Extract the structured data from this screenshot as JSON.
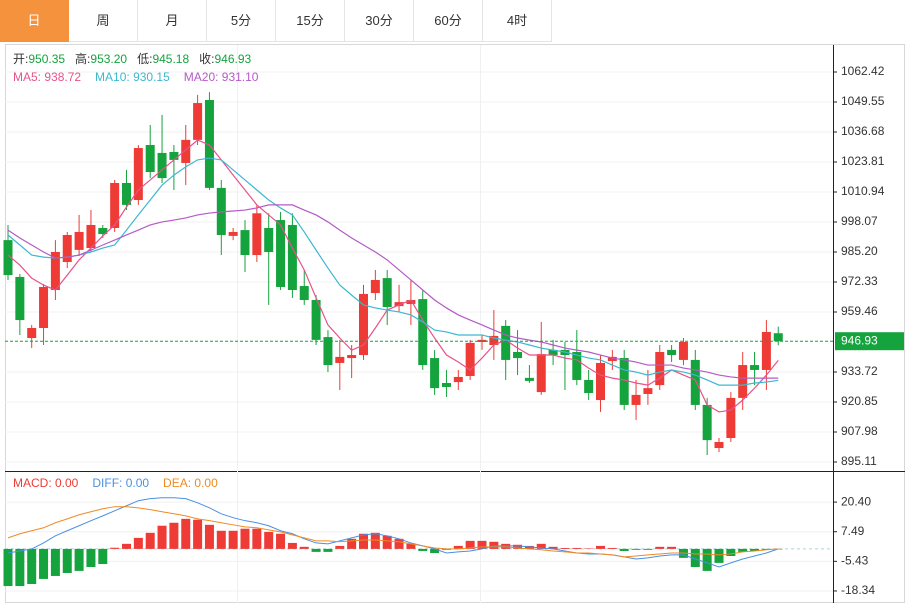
{
  "tabs": [
    "日",
    "周",
    "月",
    "5分",
    "15分",
    "30分",
    "60分",
    "4时"
  ],
  "active_tab": 0,
  "chart_data": [
    {
      "type": "candlestick",
      "info": [
        {
          "label": "开:",
          "value": "950.35"
        },
        {
          "label": "高:",
          "value": "953.20"
        },
        {
          "label": "低:",
          "value": "945.18"
        },
        {
          "label": "收:",
          "value": "946.93"
        }
      ],
      "info_value_color": "#14a33d",
      "up_color": "#ee3b36",
      "down_color": "#14a33d",
      "ylim": [
        891.68,
        1074.0
      ],
      "yticks": [
        1062.42,
        1049.55,
        1036.68,
        1023.81,
        1010.94,
        998.07,
        {
          "value": 985.2,
          "label": "985.20"
        },
        972.33,
        959.46,
        933.72,
        920.85,
        907.98,
        895.11
      ],
      "last_price": 946.93,
      "grid": true,
      "ohlc": [
        [
          990.3,
          996.8,
          973.2,
          975.3
        ],
        [
          974.5,
          975.8,
          949.6,
          956.0
        ],
        [
          948.3,
          953.9,
          944.0,
          952.6
        ],
        [
          952.6,
          971.5,
          945.3,
          970.2
        ],
        [
          968.9,
          990.3,
          964.6,
          985.2
        ],
        [
          980.9,
          993.8,
          978.3,
          992.5
        ],
        [
          986.1,
          1001.1,
          983.5,
          993.8
        ],
        [
          986.9,
          1003.2,
          985.2,
          996.8
        ],
        [
          995.5,
          996.8,
          991.2,
          992.9
        ],
        [
          995.5,
          1016.1,
          993.8,
          1014.8
        ],
        [
          1014.8,
          1020.4,
          1003.2,
          1005.4
        ],
        [
          1007.5,
          1031.1,
          1005.4,
          1029.8
        ],
        [
          1031.1,
          1039.7,
          1016.9,
          1019.5
        ],
        [
          1027.7,
          1044.0,
          1014.8,
          1016.9
        ],
        [
          1028.1,
          1031.1,
          1011.8,
          1024.7
        ],
        [
          1023.4,
          1039.7,
          1013.9,
          1033.3
        ],
        [
          1033.3,
          1052.6,
          1031.1,
          1049.1
        ],
        [
          1050.4,
          1053.8,
          1011.8,
          1012.7
        ],
        [
          1012.7,
          1016.1,
          983.9,
          992.5
        ],
        [
          992.1,
          995.5,
          990.3,
          993.8
        ],
        [
          994.6,
          998.9,
          976.6,
          983.9
        ],
        [
          983.9,
          1005.4,
          980.9,
          1001.8
        ],
        [
          995.5,
          1001.8,
          962.5,
          985.2
        ],
        [
          998.9,
          1002.4,
          968.9,
          970.2
        ],
        [
          996.8,
          1001.8,
          965.5,
          968.9
        ],
        [
          970.6,
          977.5,
          962.5,
          964.6
        ],
        [
          964.6,
          966.7,
          945.3,
          947.5
        ],
        [
          948.7,
          951.7,
          933.7,
          936.7
        ],
        [
          937.6,
          947.5,
          926.0,
          940.2
        ],
        [
          939.7,
          945.3,
          931.1,
          941.0
        ],
        [
          941.0,
          971.1,
          938.9,
          967.2
        ],
        [
          967.6,
          977.5,
          964.6,
          973.2
        ],
        [
          974.0,
          977.5,
          953.9,
          961.6
        ],
        [
          962.0,
          971.1,
          959.5,
          963.7
        ],
        [
          962.9,
          973.2,
          953.9,
          964.6
        ],
        [
          965.0,
          968.9,
          934.6,
          936.7
        ],
        [
          939.7,
          943.1,
          923.9,
          926.8
        ],
        [
          929.0,
          934.6,
          923.0,
          927.3
        ],
        [
          929.4,
          934.6,
          926.0,
          931.6
        ],
        [
          932.0,
          947.5,
          930.3,
          946.2
        ],
        [
          946.6,
          949.6,
          943.2,
          947.5
        ],
        [
          945.3,
          960.3,
          938.9,
          949.2
        ],
        [
          953.5,
          956.0,
          930.3,
          938.9
        ],
        [
          942.3,
          951.7,
          932.4,
          939.7
        ],
        [
          931.2,
          936.7,
          929.0,
          929.9
        ],
        [
          925.1,
          955.2,
          923.9,
          941.4
        ],
        [
          943.2,
          947.5,
          936.7,
          941.0
        ],
        [
          943.2,
          946.6,
          926.0,
          941.0
        ],
        [
          942.3,
          951.7,
          928.1,
          930.3
        ],
        [
          930.3,
          934.6,
          921.7,
          924.7
        ],
        [
          921.7,
          941.0,
          916.6,
          937.6
        ],
        [
          938.4,
          943.2,
          934.6,
          940.2
        ],
        [
          939.7,
          943.2,
          917.4,
          919.6
        ],
        [
          919.6,
          930.3,
          913.1,
          923.9
        ],
        [
          924.3,
          934.6,
          919.6,
          926.8
        ],
        [
          928.1,
          945.3,
          926.0,
          942.3
        ],
        [
          943.2,
          945.3,
          938.0,
          941.0
        ],
        [
          938.9,
          948.3,
          936.7,
          946.6
        ],
        [
          938.9,
          943.2,
          917.4,
          919.6
        ],
        [
          919.6,
          922.6,
          898.1,
          904.5
        ],
        [
          901.1,
          905.4,
          899.4,
          903.7
        ],
        [
          905.4,
          925.1,
          903.7,
          922.6
        ],
        [
          922.6,
          942.3,
          917.4,
          936.7
        ],
        [
          936.7,
          942.3,
          928.1,
          934.6
        ],
        [
          934.6,
          956.0,
          926.0,
          950.9
        ],
        [
          950.35,
          953.2,
          945.18,
          946.93
        ]
      ],
      "series": [
        {
          "name": "MA5: 938.72",
          "color": "#e8528a",
          "values": [
            983.9,
            979.6,
            974.0,
            971.0,
            968.9,
            975.3,
            981.8,
            986.9,
            992.1,
            996.8,
            1004.5,
            1011.8,
            1016.1,
            1020.4,
            1024.7,
            1029.0,
            1033.2,
            1031.1,
            1024.7,
            1018.2,
            1011.8,
            1005.4,
            1001.1,
            996.8,
            986.9,
            977.5,
            965.5,
            953.9,
            948.3,
            943.1,
            945.3,
            952.6,
            960.3,
            962.5,
            964.6,
            956.0,
            948.3,
            941.0,
            938.0,
            934.6,
            939.7,
            945.3,
            947.4,
            944.0,
            941.0,
            941.0,
            941.0,
            939.7,
            938.9,
            935.4,
            932.4,
            931.1,
            930.3,
            929.0,
            928.1,
            931.1,
            934.6,
            932.4,
            930.3,
            919.6,
            916.6,
            917.4,
            921.7,
            926.8,
            932.4,
            938.72
          ]
        },
        {
          "name": "MA10: 930.15",
          "color": "#3cb8d0",
          "values": [
            992.5,
            988.2,
            983.9,
            983.0,
            982.6,
            983.0,
            983.9,
            985.2,
            986.9,
            988.2,
            994.6,
            1001.1,
            1007.5,
            1013.9,
            1018.2,
            1021.7,
            1024.7,
            1025.5,
            1024.7,
            1020.4,
            1016.1,
            1011.8,
            1007.5,
            1004.1,
            1001.1,
            993.8,
            986.0,
            978.3,
            971.0,
            966.7,
            962.5,
            961.2,
            960.3,
            959.5,
            958.2,
            955.2,
            951.7,
            950.9,
            949.6,
            949.6,
            949.6,
            948.3,
            947.4,
            946.6,
            945.3,
            944.0,
            943.1,
            942.3,
            941.0,
            939.7,
            938.9,
            936.7,
            934.6,
            933.7,
            932.4,
            933.7,
            934.6,
            933.7,
            932.4,
            930.3,
            928.1,
            928.1,
            928.1,
            929.0,
            929.4,
            930.15
          ]
        },
        {
          "name": "MA20: 931.10",
          "color": "#b55ac6",
          "values": [
            994.6,
            991.2,
            988.2,
            985.2,
            982.6,
            983.0,
            983.9,
            986.0,
            988.2,
            990.3,
            992.5,
            994.6,
            996.8,
            998.1,
            998.9,
            999.8,
            1001.1,
            1001.9,
            1002.4,
            1002.8,
            1003.2,
            1004.1,
            1005.4,
            1005.4,
            1005.4,
            1003.2,
            1001.1,
            998.1,
            994.6,
            991.2,
            988.2,
            985.2,
            981.8,
            977.5,
            973.2,
            968.9,
            964.6,
            961.2,
            958.2,
            956.0,
            953.9,
            951.7,
            949.6,
            948.3,
            947.4,
            946.6,
            945.3,
            944.0,
            943.1,
            942.3,
            941.0,
            939.7,
            938.9,
            938.0,
            936.7,
            936.7,
            936.7,
            935.4,
            934.6,
            933.7,
            932.4,
            931.6,
            931.1,
            931.1,
            931.1,
            931.1
          ]
        }
      ]
    },
    {
      "type": "macd",
      "name": "MACD: 0.00",
      "color": "#ee3b36",
      "up_color": "#ee3b36",
      "down_color": "#14a33d",
      "ylim": [
        -22.28,
        32.65
      ],
      "yticks": [
        {
          "value": 20.4,
          "label": "20.40"
        },
        7.49,
        -5.43,
        -18.34
      ],
      "values": [
        -16.2,
        -16.2,
        -15.3,
        -13.1,
        -11.8,
        -10.5,
        -9.6,
        -7.9,
        -6.6,
        0.5,
        2.2,
        4.8,
        7.0,
        10.1,
        11.4,
        13.1,
        12.7,
        10.5,
        7.9,
        7.9,
        8.8,
        8.8,
        7.4,
        6.6,
        2.6,
        0.9,
        -1.3,
        -1.3,
        1.3,
        4.4,
        6.6,
        7.0,
        5.7,
        4.4,
        2.2,
        -0.9,
        -1.8,
        -0.4,
        1.3,
        3.5,
        3.5,
        3.1,
        2.2,
        1.8,
        1.3,
        2.2,
        0.9,
        0.4,
        0.4,
        0.2,
        1.3,
        0.4,
        -0.9,
        -0.4,
        -0.4,
        0.9,
        0.9,
        -3.9,
        -7.9,
        -9.6,
        -6.1,
        -3.1,
        -1.3,
        -0.9,
        -0.4,
        0.0
      ],
      "series": [
        {
          "name": "DIFF: 0.00",
          "color": "#4a90e2",
          "values": [
            -1.8,
            -0.9,
            0,
            2.6,
            5.7,
            7.9,
            10.1,
            12.3,
            14.4,
            16.6,
            18.8,
            21.0,
            21.9,
            22.3,
            22.3,
            21.9,
            20.1,
            17.9,
            15.3,
            13.6,
            12.3,
            11.4,
            10.1,
            7.9,
            6.6,
            4.4,
            2.6,
            2.2,
            3.5,
            4.8,
            6.1,
            6.6,
            5.7,
            4.4,
            2.6,
            1.3,
            0,
            -1.8,
            -1.3,
            -0.9,
            0,
            1.3,
            1.3,
            1.3,
            0.9,
            0.4,
            0,
            -0.9,
            -1.8,
            -2.2,
            -2.2,
            -2.6,
            -3.5,
            -4.4,
            -3.9,
            -3.1,
            -2.6,
            -2.6,
            -4.4,
            -6.1,
            -7.9,
            -6.1,
            -4.4,
            -3.1,
            -1.8,
            0
          ]
        },
        {
          "name": "DEA: 0.00",
          "color": "#f08a24",
          "values": [
            4.8,
            6.6,
            7.9,
            9.2,
            11.4,
            13.1,
            14.9,
            16.2,
            17.5,
            18.4,
            18.4,
            17.9,
            17.1,
            16.2,
            15.3,
            14.4,
            13.1,
            12.3,
            11.4,
            10.5,
            9.6,
            9.2,
            8.3,
            7.4,
            6.1,
            4.8,
            3.5,
            3.5,
            3.1,
            3.5,
            3.9,
            3.9,
            3.5,
            3.1,
            2.2,
            1.3,
            0.4,
            0,
            0,
            0.4,
            0.9,
            0.9,
            0.9,
            0.4,
            0,
            -0.4,
            -0.9,
            -1.3,
            -1.8,
            -1.8,
            -2.2,
            -2.6,
            -3.5,
            -3.1,
            -2.6,
            -2.2,
            -1.8,
            -1.8,
            -2.2,
            -2.2,
            -2.6,
            -2.2,
            -1.3,
            -0.9,
            -0.4,
            0
          ]
        }
      ]
    }
  ]
}
